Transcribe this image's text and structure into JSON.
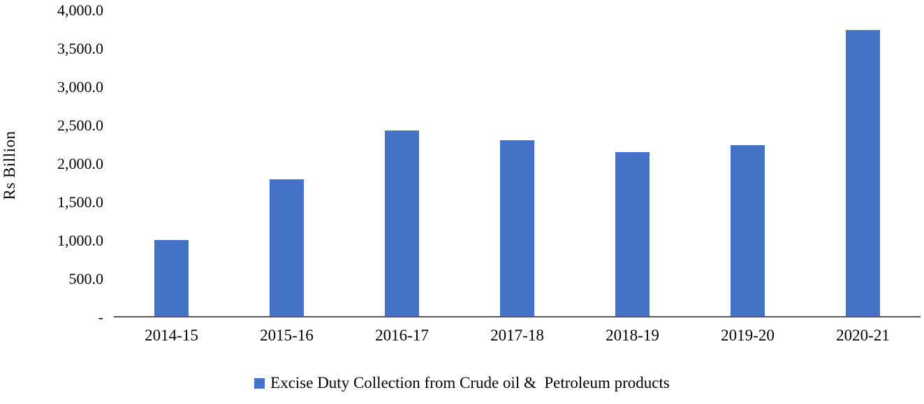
{
  "chart_data": {
    "type": "bar",
    "title": "",
    "categories": [
      "2014-15",
      "2015-16",
      "2016-17",
      "2017-18",
      "2018-19",
      "2019-20",
      "2020-21"
    ],
    "series": [
      {
        "name": "Excise Duty Collection from Crude oil &  Petroleum products",
        "values": [
          1000,
          1790,
          2430,
          2300,
          2150,
          2240,
          3740
        ]
      }
    ],
    "xlabel": "",
    "ylabel": "Rs Billion",
    "ylim": [
      0,
      4000
    ],
    "ytick_step": 500,
    "ytick_labels": [
      "-",
      "500.0",
      "1,000.0",
      "1,500.0",
      "2,000.0",
      "2,500.0",
      "3,000.0",
      "3,500.0",
      "4,000.0"
    ],
    "grid": false,
    "legend_position": "bottom",
    "bar_color": "#4472C4",
    "axis_line_color": "#595959"
  },
  "axes": {
    "y_title": "Rs Billion"
  },
  "legend": {
    "swatch_color": "#4472C4",
    "label": "Excise Duty Collection from Crude oil &  Petroleum products"
  }
}
